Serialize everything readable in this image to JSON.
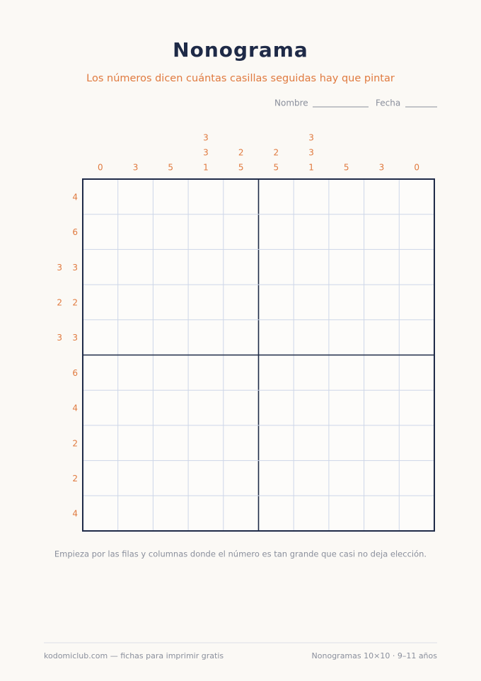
{
  "header": {
    "title": "Nonograma",
    "subtitle": "Los números dicen cuántas casillas seguidas hay que pintar",
    "name_label": "Nombre",
    "date_label": "Fecha"
  },
  "puzzle": {
    "column_clues": [
      [
        0
      ],
      [
        3
      ],
      [
        5
      ],
      [
        3,
        3,
        1
      ],
      [
        2,
        5
      ],
      [
        2,
        5
      ],
      [
        3,
        3,
        1
      ],
      [
        5
      ],
      [
        3
      ],
      [
        0
      ]
    ],
    "row_clues": [
      [
        4
      ],
      [
        6
      ],
      [
        3,
        3
      ],
      [
        2,
        2
      ],
      [
        3,
        3
      ],
      [
        6
      ],
      [
        4
      ],
      [
        2
      ],
      [
        2
      ],
      [
        4
      ]
    ]
  },
  "tip": "Empieza por las filas y columnas donde el número es tan grande que casi no deja elección.",
  "footer": {
    "left": "kodomiclub.com — fichas para imprimir gratis",
    "right": "Nonogramas 10×10 · 9–11 años"
  }
}
